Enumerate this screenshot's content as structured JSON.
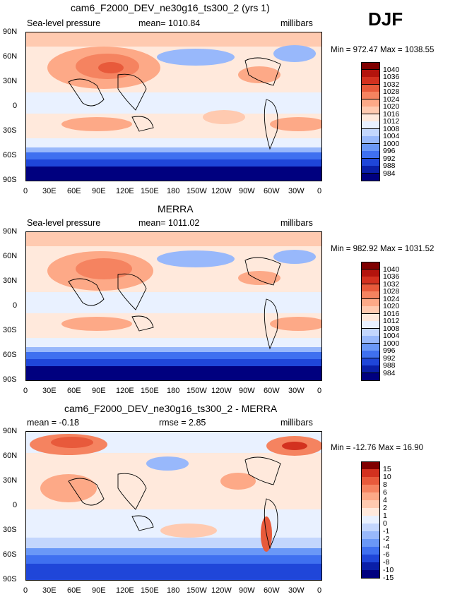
{
  "season_label": "DJF",
  "colors": {
    "absolute": [
      "#00007f",
      "#0a1fa8",
      "#1f46d9",
      "#3f70f0",
      "#6a98f7",
      "#98b8fb",
      "#c3d6fd",
      "#e9f1ff",
      "#ffe9dc",
      "#ffcab0",
      "#fda987",
      "#f58360",
      "#e85a3b",
      "#d3311f",
      "#b3140d",
      "#7f0000"
    ],
    "difference": [
      "#00007f",
      "#0a1fa8",
      "#1f46d9",
      "#3f70f0",
      "#6a98f7",
      "#98b8fb",
      "#c3d6fd",
      "#e9f1ff",
      "#ffe9dc",
      "#ffcab0",
      "#fda987",
      "#f58360",
      "#e85a3b",
      "#d3311f",
      "#7f0000"
    ]
  },
  "axes": {
    "lat_ticks": [
      "90N",
      "60N",
      "30N",
      "0",
      "30S",
      "60S",
      "90S"
    ],
    "lon_ticks": [
      "0",
      "30E",
      "60E",
      "90E",
      "120E",
      "150E",
      "180",
      "150W",
      "120W",
      "90W",
      "60W",
      "30W",
      "0"
    ]
  },
  "panels": [
    {
      "title": "cam6_F2000_DEV_ne30g16_ts300_2 (yrs 1)",
      "left_label": "Sea-level pressure",
      "center_label": "mean= 1010.84",
      "right_label": "millibars",
      "minmax": "Min = 972.47 Max = 1038.55",
      "colorbar_labels": [
        "1040",
        "1036",
        "1032",
        "1028",
        "1024",
        "1020",
        "1016",
        "1012",
        "1008",
        "1004",
        "1000",
        "996",
        "992",
        "988",
        "984"
      ],
      "palette": "absolute"
    },
    {
      "title": "MERRA",
      "left_label": "Sea-level pressure",
      "center_label": "mean= 1011.02",
      "right_label": "millibars",
      "minmax": "Min = 982.92 Max = 1031.52",
      "colorbar_labels": [
        "1040",
        "1036",
        "1032",
        "1028",
        "1024",
        "1020",
        "1016",
        "1012",
        "1008",
        "1004",
        "1000",
        "996",
        "992",
        "988",
        "984"
      ],
      "palette": "absolute"
    },
    {
      "title": "cam6_F2000_DEV_ne30g16_ts300_2 - MERRA",
      "left_label": "mean =  -0.18",
      "center_label": "rmse =    2.85",
      "right_label": "millibars",
      "minmax": "Min = -12.76 Max =  16.90",
      "colorbar_labels": [
        "15",
        "10",
        "8",
        "6",
        "4",
        "2",
        "1",
        "0",
        "-1",
        "-2",
        "-4",
        "-6",
        "-8",
        "-10",
        "-15"
      ],
      "palette": "difference"
    }
  ]
}
